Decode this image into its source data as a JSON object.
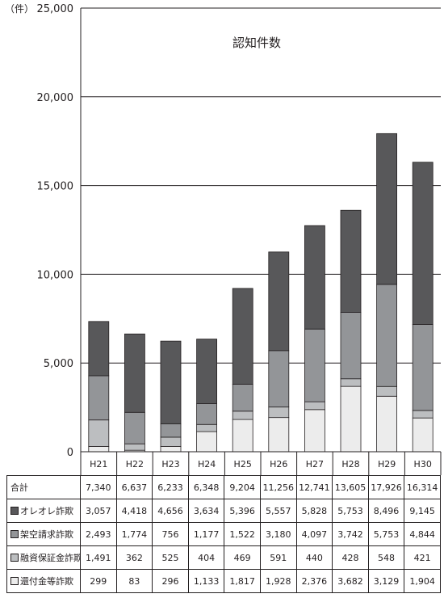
{
  "chart_data": {
    "type": "bar",
    "stacked": true,
    "title": "認知件数",
    "unit_label": "（件）",
    "ylim": [
      0,
      25000
    ],
    "yticks": [
      "0",
      "5,000",
      "10,000",
      "15,000",
      "20,000",
      "25,000"
    ],
    "ytick_values": [
      0,
      5000,
      10000,
      15000,
      20000,
      25000
    ],
    "grid": true,
    "categories": [
      "H21",
      "H22",
      "H23",
      "H24",
      "H25",
      "H26",
      "H27",
      "H28",
      "H29",
      "H30"
    ],
    "total_label": "合計",
    "totals": [
      "7,340",
      "6,637",
      "6,233",
      "6,348",
      "9,204",
      "11,256",
      "12,741",
      "13,605",
      "17,926",
      "16,314"
    ],
    "series": [
      {
        "name": "オレオレ詐欺",
        "color": "#58585a",
        "values": [
          3057,
          4418,
          4656,
          3634,
          5396,
          5557,
          5828,
          5753,
          8496,
          9145
        ],
        "labels": [
          "3,057",
          "4,418",
          "4,656",
          "3,634",
          "5,396",
          "5,557",
          "5,828",
          "5,753",
          "8,496",
          "9,145"
        ]
      },
      {
        "name": "架空請求詐欺",
        "color": "#939598",
        "values": [
          2493,
          1774,
          756,
          1177,
          1522,
          3180,
          4097,
          3742,
          5753,
          4844
        ],
        "labels": [
          "2,493",
          "1,774",
          "756",
          "1,177",
          "1,522",
          "3,180",
          "4,097",
          "3,742",
          "5,753",
          "4,844"
        ]
      },
      {
        "name": "融資保証金詐欺",
        "color": "#bcbec0",
        "values": [
          1491,
          362,
          525,
          404,
          469,
          591,
          440,
          428,
          548,
          421
        ],
        "labels": [
          "1,491",
          "362",
          "525",
          "404",
          "469",
          "591",
          "440",
          "428",
          "548",
          "421"
        ]
      },
      {
        "name": "還付金等詐欺",
        "color": "#ececec",
        "values": [
          299,
          83,
          296,
          1133,
          1817,
          1928,
          2376,
          3682,
          3129,
          1904
        ],
        "labels": [
          "299",
          "83",
          "296",
          "1,133",
          "1,817",
          "1,928",
          "2,376",
          "3,682",
          "3,129",
          "1,904"
        ]
      }
    ]
  }
}
